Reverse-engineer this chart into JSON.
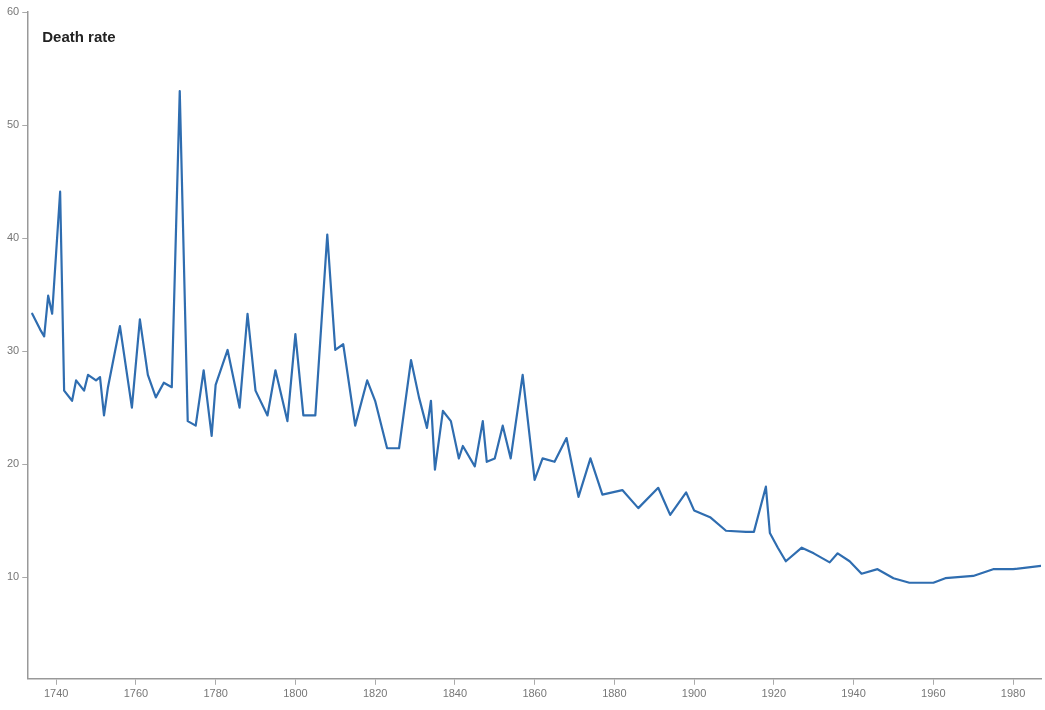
{
  "chart_data": {
    "type": "line",
    "ylabel": "Death rate",
    "x": [
      1734,
      1736,
      1737,
      1738,
      1739,
      1741,
      1742,
      1744,
      1745,
      1747,
      1748,
      1750,
      1751,
      1752,
      1753,
      1756,
      1759,
      1761,
      1763,
      1765,
      1767,
      1769,
      1771,
      1773,
      1775,
      1777,
      1779,
      1780,
      1783,
      1786,
      1788,
      1790,
      1793,
      1795,
      1798,
      1800,
      1802,
      1805,
      1808,
      1810,
      1812,
      1815,
      1818,
      1820,
      1823,
      1826,
      1829,
      1831,
      1833,
      1834,
      1835,
      1837,
      1839,
      1841,
      1842,
      1845,
      1847,
      1848,
      1850,
      1852,
      1854,
      1857,
      1860,
      1862,
      1865,
      1868,
      1871,
      1874,
      1877,
      1882,
      1886,
      1891,
      1894,
      1898,
      1900,
      1904,
      1908,
      1913,
      1915,
      1918,
      1919,
      1921,
      1923,
      1927,
      1930,
      1934,
      1936,
      1939,
      1942,
      1946,
      1950,
      1954,
      1960,
      1963,
      1970,
      1975,
      1980,
      1987
    ],
    "series": [
      {
        "color": "#2f6db0",
        "values": [
          33.3,
          31.9,
          31.3,
          34.9,
          33.3,
          44.1,
          26.5,
          25.6,
          27.4,
          26.5,
          27.9,
          27.4,
          27.7,
          24.3,
          26.8,
          32.2,
          25.0,
          32.8,
          27.9,
          25.9,
          27.2,
          26.8,
          53.0,
          23.8,
          23.4,
          28.3,
          22.5,
          27.0,
          30.1,
          25.0,
          33.3,
          26.5,
          24.3,
          28.3,
          23.8,
          31.5,
          24.3,
          24.3,
          40.3,
          30.1,
          30.6,
          23.4,
          27.4,
          25.6,
          21.4,
          21.4,
          29.2,
          25.9,
          23.2,
          25.6,
          19.5,
          24.7,
          23.8,
          20.5,
          21.6,
          19.8,
          23.8,
          20.2,
          20.5,
          23.4,
          20.5,
          27.9,
          18.6,
          20.5,
          20.2,
          22.3,
          17.1,
          20.5,
          17.3,
          17.7,
          16.1,
          17.9,
          15.5,
          17.5,
          15.9,
          15.3,
          14.1,
          14.0,
          14.0,
          18.0,
          13.9,
          12.6,
          11.4,
          12.6,
          12.1,
          11.3,
          12.1,
          11.4,
          10.3,
          10.7,
          9.9,
          9.5,
          9.5,
          9.9,
          10.1,
          10.7,
          10.7,
          11.0
        ]
      }
    ],
    "xlim": [
      1733,
      1987
    ],
    "xticks": [
      1740,
      1760,
      1780,
      1800,
      1820,
      1840,
      1860,
      1880,
      1900,
      1920,
      1940,
      1960,
      1980
    ],
    "ylim": [
      1,
      60
    ],
    "yticks": [
      10,
      20,
      30,
      40,
      50,
      60
    ],
    "grid": false,
    "legend": false,
    "marker": "none",
    "line_style": "solid"
  }
}
